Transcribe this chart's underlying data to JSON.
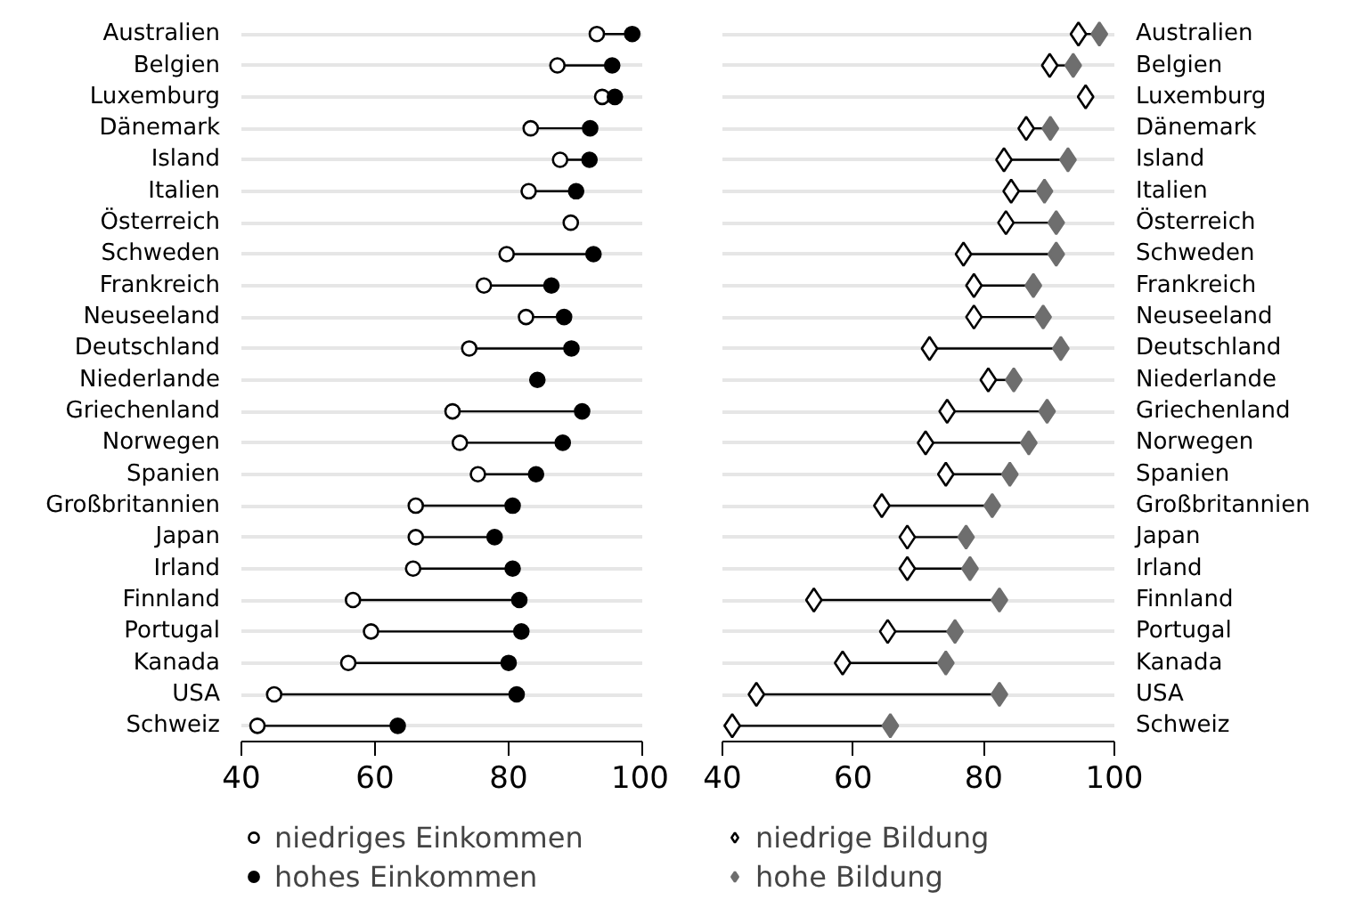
{
  "chart_data": [
    {
      "type": "scatter",
      "orientation": "horizontal",
      "categories": [
        "Australien",
        "Belgien",
        "Luxemburg",
        "Dänemark",
        "Island",
        "Italien",
        "Österreich",
        "Schweden",
        "Frankreich",
        "Neuseeland",
        "Deutschland",
        "Niederlande",
        "Griechenland",
        "Norwegen",
        "Spanien",
        "Großbritannien",
        "Japan",
        "Irland",
        "Finnland",
        "Portugal",
        "Kanada",
        "USA",
        "Schweiz"
      ],
      "series": [
        {
          "name": "niedriges Einkommen",
          "color": "#ffffff",
          "marker": "circle",
          "values": [
            93.2,
            87.3,
            94.0,
            83.3,
            87.7,
            83.0,
            89.3,
            79.7,
            76.3,
            82.6,
            74.1,
            null,
            71.6,
            72.7,
            75.4,
            66.1,
            66.1,
            65.7,
            56.7,
            59.4,
            56.0,
            44.9,
            42.4
          ]
        },
        {
          "name": "hohes Einkommen",
          "color": "#000000",
          "marker": "circle",
          "values": [
            98.5,
            95.5,
            95.9,
            92.2,
            92.1,
            90.1,
            null,
            92.7,
            86.4,
            88.3,
            89.4,
            84.3,
            91.0,
            88.1,
            84.1,
            80.6,
            77.9,
            80.6,
            81.6,
            81.9,
            80.0,
            81.2,
            63.4
          ]
        }
      ],
      "xlim": [
        40,
        100
      ],
      "xticks": [
        40,
        60,
        80,
        100
      ],
      "grid": "y",
      "legend": "bottom"
    },
    {
      "type": "scatter",
      "orientation": "horizontal",
      "categories": [
        "Australien",
        "Belgien",
        "Luxemburg",
        "Dänemark",
        "Island",
        "Italien",
        "Österreich",
        "Schweden",
        "Frankreich",
        "Neuseeland",
        "Deutschland",
        "Niederlande",
        "Griechenland",
        "Norwegen",
        "Spanien",
        "Großbritannien",
        "Japan",
        "Irland",
        "Finnland",
        "Portugal",
        "Kanada",
        "USA",
        "Schweiz"
      ],
      "series": [
        {
          "name": "niedrige Bildung",
          "color": "#ffffff",
          "marker": "diamond",
          "values": [
            94.5,
            90.1,
            95.6,
            86.5,
            83.1,
            84.2,
            83.4,
            76.9,
            78.5,
            78.5,
            71.7,
            80.7,
            74.4,
            71.1,
            74.2,
            64.4,
            68.3,
            68.3,
            54.0,
            65.3,
            58.4,
            45.2,
            41.5
          ]
        },
        {
          "name": "hohe Bildung",
          "color": "#6e6e6e",
          "marker": "diamond",
          "values": [
            97.7,
            93.7,
            null,
            90.2,
            92.9,
            89.3,
            91.1,
            91.1,
            87.6,
            89.1,
            91.8,
            84.6,
            89.7,
            86.9,
            84.0,
            81.3,
            77.3,
            77.9,
            82.4,
            75.6,
            74.2,
            82.4,
            65.7
          ]
        }
      ],
      "xlim": [
        40,
        100
      ],
      "xticks": [
        40,
        60,
        80,
        100
      ],
      "grid": "y",
      "legend": "bottom"
    }
  ]
}
